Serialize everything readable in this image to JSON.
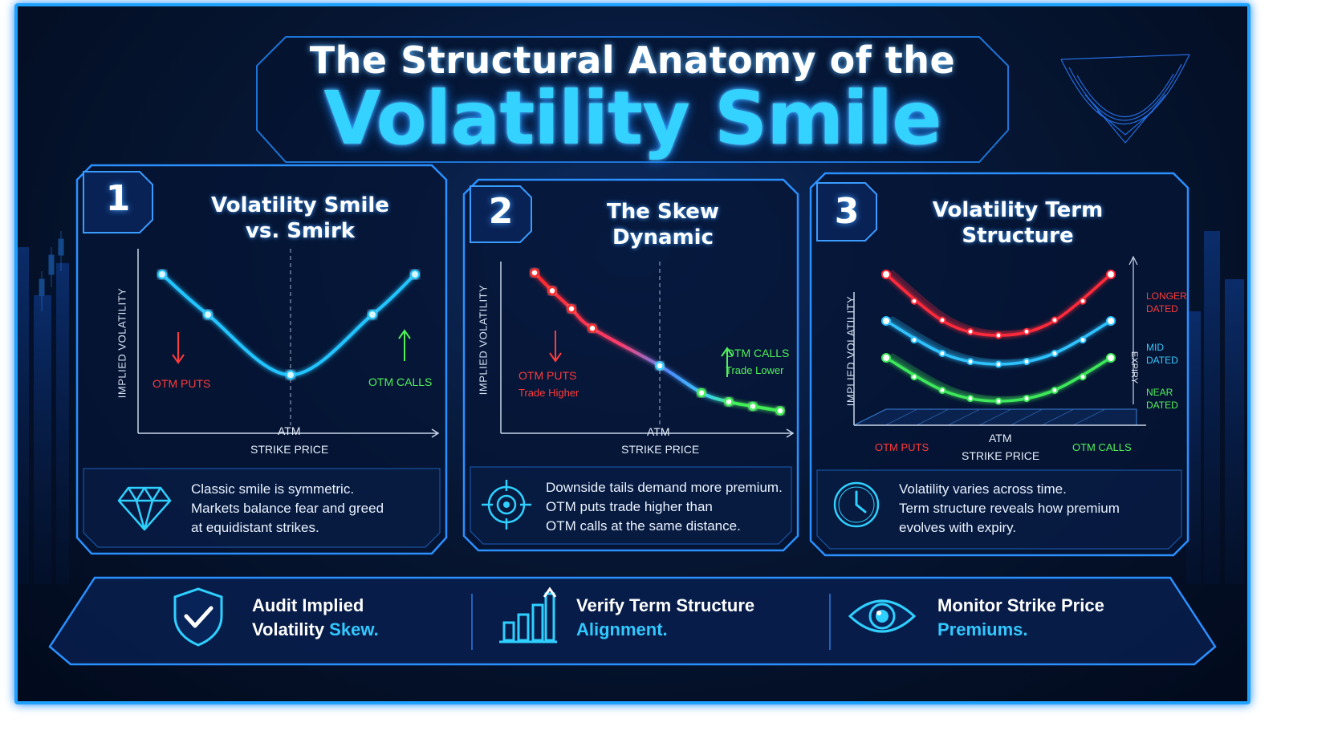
{
  "title": {
    "line1": "The Structural Anatomy of the",
    "line2": "Volatility Smile"
  },
  "colors": {
    "accent": "#32c8ff",
    "frame": "#1fa2ff",
    "put": "#ff3b3b",
    "call": "#52f15a",
    "background": "#061633"
  },
  "panels": [
    {
      "number": "1",
      "title_line1": "Volatility Smile",
      "title_line2": "vs. Smirk",
      "y_axis_label": "IMPLIED VOLATILITY",
      "x_axis_label": "STRIKE PRICE",
      "atm_label": "ATM",
      "left_label": "OTM PUTS",
      "right_label": "OTM CALLS",
      "icon": "diamond-icon",
      "desc_line1": "Classic smile is symmetric.",
      "desc_line2": "Markets balance fear and greed",
      "desc_line3": "at equidistant strikes."
    },
    {
      "number": "2",
      "title_line1": "The Skew",
      "title_line2": "Dynamic",
      "y_axis_label": "IMPLIED VOLATILITY",
      "x_axis_label": "STRIKE PRICE",
      "atm_label": "ATM",
      "left_label": "OTM PUTS",
      "left_sub": "Trade Higher",
      "right_label": "OTM CALLS",
      "right_sub": "Trade Lower",
      "icon": "target-icon",
      "desc_line1": "Downside tails demand more premium.",
      "desc_line2": "OTM puts trade higher than",
      "desc_line3": "OTM calls at the same distance."
    },
    {
      "number": "3",
      "title_line1": "Volatility Term",
      "title_line2": "Structure",
      "y_axis_label": "IMPLIED VOLATILITY",
      "x_axis_label": "STRIKE PRICE",
      "atm_label": "ATM",
      "left_label": "OTM PUTS",
      "right_label": "OTM CALLS",
      "expiry_axis": "EXPIRY",
      "longer": "LONGER",
      "longer2": "DATED",
      "mid": "MID",
      "mid2": "DATED",
      "near": "NEAR",
      "near2": "DATED",
      "icon": "clock-icon",
      "desc_line1": "Volatility varies across time.",
      "desc_line2": "Term structure reveals how premium",
      "desc_line3": "evolves with expiry."
    }
  ],
  "footer": [
    {
      "icon": "shield-check-icon",
      "line1": "Audit Implied",
      "line2_plain": "Volatility ",
      "line2_hl": "Skew."
    },
    {
      "icon": "bar-chart-icon",
      "line1": "Verify Term Structure",
      "line2_plain": "",
      "line2_hl": "Alignment."
    },
    {
      "icon": "eye-icon",
      "line1": "Monitor Strike Price",
      "line2_plain": "",
      "line2_hl": "Premiums."
    }
  ],
  "chart_data": [
    {
      "type": "line",
      "series": [
        {
          "values": [
            0.85,
            0.55,
            0.1,
            0.55,
            0.85
          ]
        }
      ]
    },
    {
      "type": "line",
      "series": [
        {
          "values": [
            0.92,
            0.8,
            0.68,
            0.55,
            0.3,
            0.12,
            0.06,
            0.03,
            0.0
          ]
        }
      ]
    },
    {
      "type": "line",
      "series": [
        {
          "name": "LONGER DATED",
          "values": [
            0.95,
            0.6,
            0.5,
            0.6,
            0.95
          ]
        },
        {
          "name": "MID DATED",
          "values": [
            0.65,
            0.35,
            0.25,
            0.35,
            0.65
          ]
        },
        {
          "name": "NEAR DATED",
          "values": [
            0.38,
            0.1,
            0.0,
            0.1,
            0.38
          ]
        }
      ]
    }
  ]
}
